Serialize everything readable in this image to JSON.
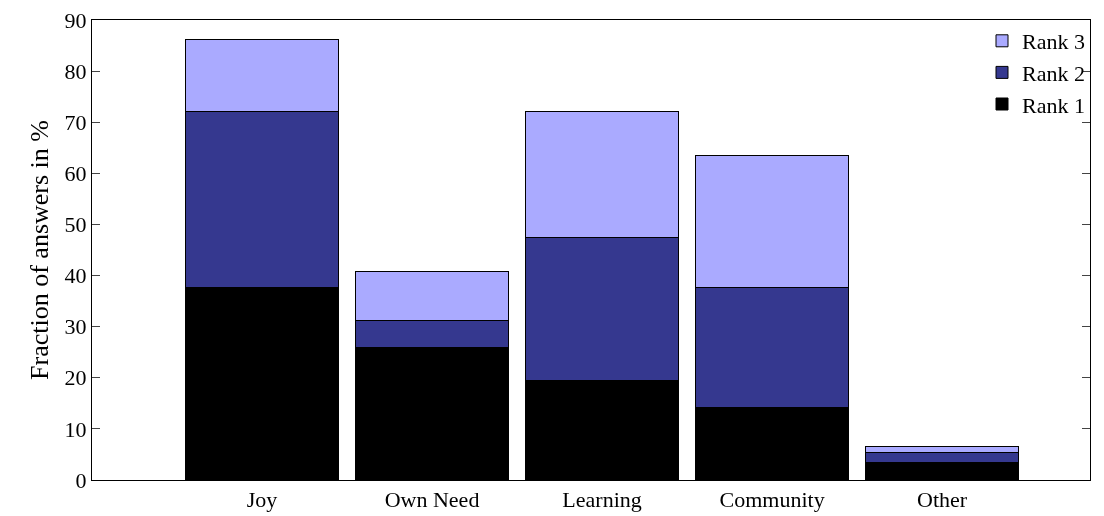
{
  "chart_data": {
    "type": "bar",
    "stacked": true,
    "ylabel": "Fraction of answers in %",
    "categories": [
      "Joy",
      "Own Need",
      "Learning",
      "Community",
      "Other"
    ],
    "series": [
      {
        "name": "Rank 1",
        "color": "#000000",
        "values": [
          37.6,
          25.9,
          19.5,
          14.1,
          3.4
        ]
      },
      {
        "name": "Rank 2",
        "color": "#35388f",
        "values": [
          34.5,
          5.4,
          27.9,
          23.5,
          2.0
        ]
      },
      {
        "name": "Rank 3",
        "color": "#aaaaff",
        "values": [
          14.0,
          9.5,
          24.7,
          25.9,
          1.2
        ]
      }
    ],
    "ylim": [
      0,
      90
    ],
    "yticks": [
      0,
      10,
      20,
      30,
      40,
      50,
      60,
      70,
      80,
      90
    ],
    "grid": false,
    "legend": "top right"
  }
}
